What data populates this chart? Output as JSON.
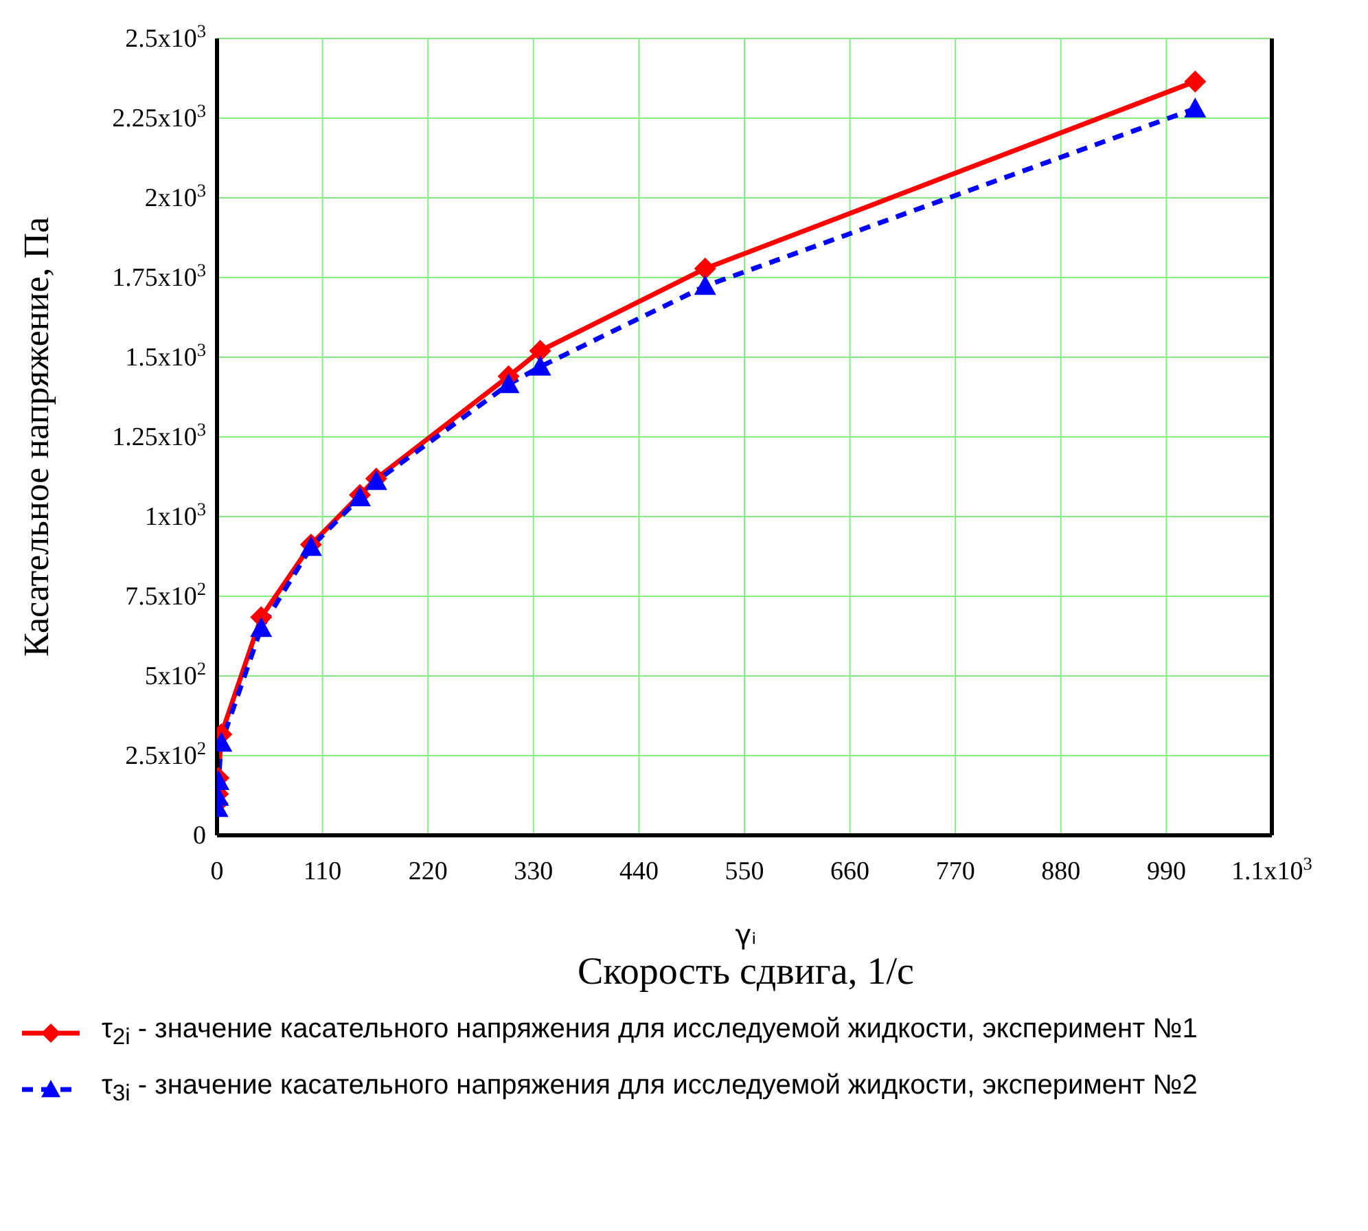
{
  "chart_data": {
    "type": "line",
    "xlabel": "γᵢ\nСкорость сдвига, 1/с",
    "ylabel": "Касательное напряжение,  Па",
    "xlim": [
      0,
      1100
    ],
    "xticks": [
      0,
      110,
      220,
      330,
      440,
      550,
      660,
      770,
      880,
      990,
      {
        "value": 1100,
        "label": "1.1x10$^{3}$"
      }
    ],
    "ylim": [
      0,
      2500
    ],
    "yticks": [
      0,
      {
        "value": 250,
        "label": "2.5x10$^{2}$"
      },
      {
        "value": 500,
        "label": "5x10$^{2}$"
      },
      {
        "value": 750,
        "label": "7.5x10$^{2}$"
      },
      {
        "value": 1000,
        "label": "1x10$^{3}$"
      },
      {
        "value": 1250,
        "label": "1.25x10$^{3}$"
      },
      {
        "value": 1500,
        "label": "1.5x10$^{3}$"
      },
      {
        "value": 1750,
        "label": "1.75x10$^{3}$"
      },
      {
        "value": 2000,
        "label": "2x10$^{3}$"
      },
      {
        "value": 2250,
        "label": "2.25x10$^{3}$"
      },
      {
        "value": 2500,
        "label": "2.5x10$^{3}$"
      }
    ],
    "grid": true,
    "legend": "bottom",
    "series": [
      {
        "name": "τ$_{2i}$  - значение касательного напряжения для исследуемой жидкости, эксперимент №1",
        "color": "#ff0000",
        "marker": "diamond",
        "line_style": "solid",
        "x": [
          0.5,
          1,
          1.5,
          4.5,
          46,
          98,
          149,
          166,
          304,
          337,
          509,
          1020
        ],
        "values": [
          100,
          130,
          180,
          317,
          684,
          912,
          1068,
          1119,
          1440,
          1520,
          1778,
          2365
        ]
      },
      {
        "name": "τ$_{3i}$  - значение касательного напряжения для исследуемой жидкости, эксперимент №2",
        "color": "#0000ff",
        "marker": "triangle",
        "line_style": "dashed",
        "x": [
          0.5,
          1,
          1.5,
          4.5,
          46,
          98,
          149,
          166,
          304,
          337,
          509,
          1020
        ],
        "values": [
          85,
          120,
          170,
          290,
          650,
          904,
          1060,
          1111,
          1415,
          1470,
          1723,
          2280
        ]
      }
    ]
  }
}
